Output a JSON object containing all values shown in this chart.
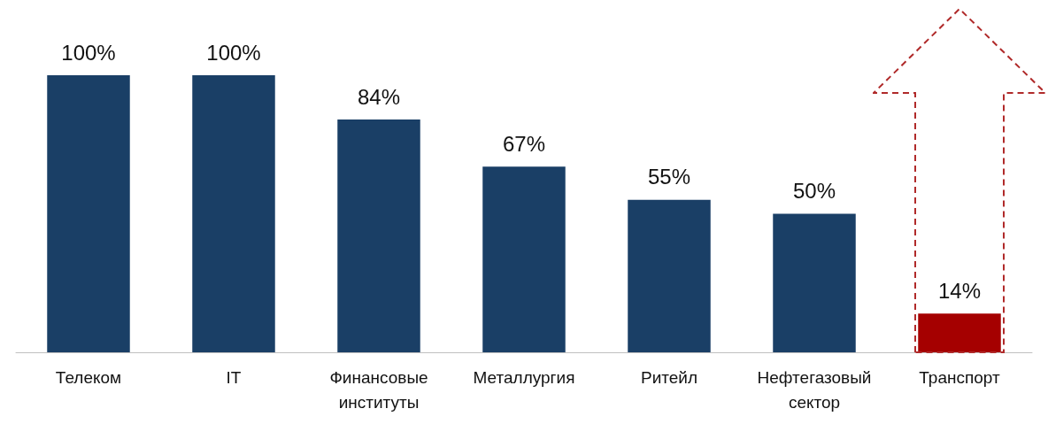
{
  "chart_data": {
    "type": "bar",
    "categories": [
      "Телеком",
      "IT",
      "Финансовые\nинституты",
      "Металлургия",
      "Ритейл",
      "Нефтегазовый\nсектор",
      "Транспорт"
    ],
    "values": [
      100,
      100,
      84,
      67,
      55,
      50,
      14
    ],
    "colors": [
      "#1a3f66",
      "#1a3f66",
      "#1a3f66",
      "#1a3f66",
      "#1a3f66",
      "#1a3f66",
      "#a50000"
    ],
    "value_labels": [
      "100%",
      "100%",
      "84%",
      "67%",
      "55%",
      "50%",
      "14%"
    ],
    "grid": false
  }
}
